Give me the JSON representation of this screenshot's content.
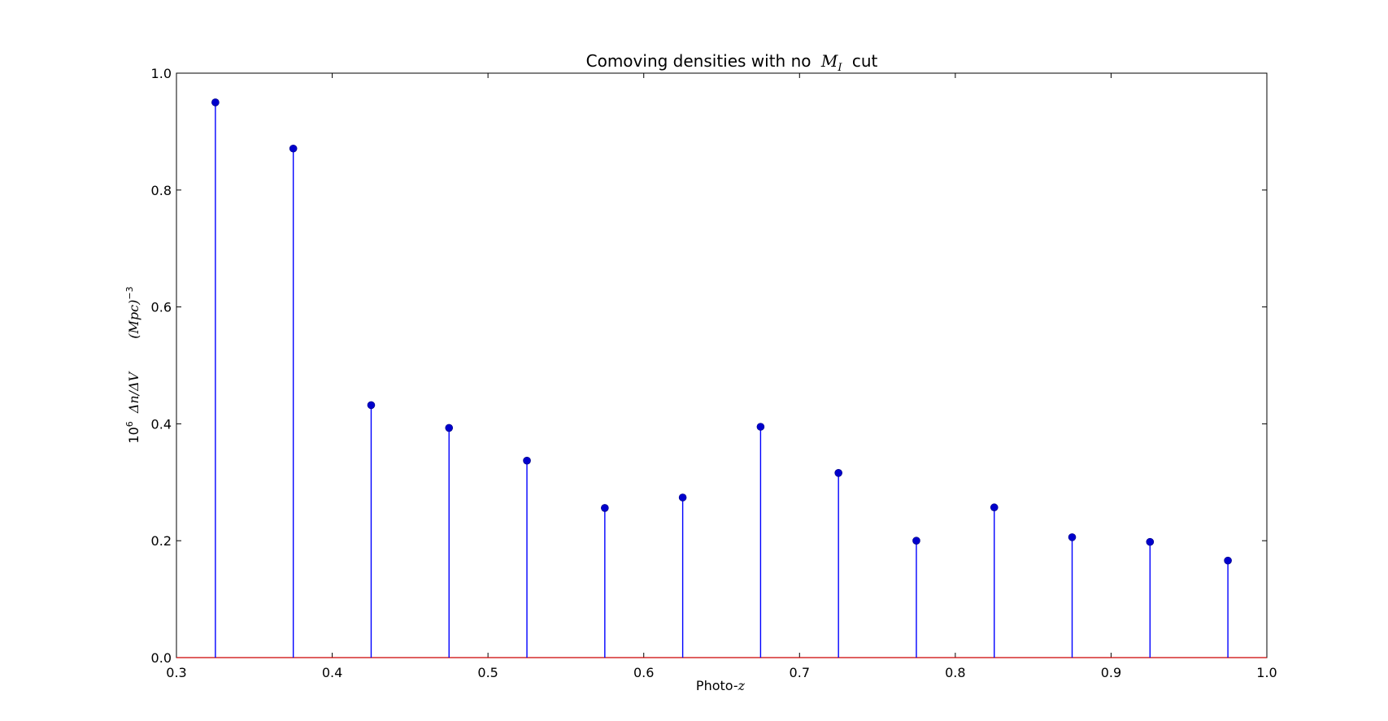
{
  "chart_data": {
    "type": "stem",
    "title": "Comoving densities with no",
    "title_math": "M",
    "title_math_sub": "I",
    "title_suffix": "cut",
    "xlabel": "Photo-",
    "xlabel_math": "z",
    "ylabel": "10",
    "ylabel_sup": "6",
    "ylabel_math": "Δn/ΔV",
    "ylabel_unit": "(Mpc)",
    "ylabel_unit_sup": "−3",
    "xlim": [
      0.3,
      1.0
    ],
    "ylim": [
      0.0,
      1.0
    ],
    "xticks": [
      "0.3",
      "0.4",
      "0.5",
      "0.6",
      "0.7",
      "0.8",
      "0.9",
      "1.0"
    ],
    "yticks": [
      "0.0",
      "0.2",
      "0.4",
      "0.6",
      "0.8",
      "1.0"
    ],
    "x": [
      0.325,
      0.375,
      0.425,
      0.475,
      0.525,
      0.575,
      0.625,
      0.675,
      0.725,
      0.775,
      0.825,
      0.875,
      0.925,
      0.975
    ],
    "y": [
      0.95,
      0.871,
      0.432,
      0.393,
      0.337,
      0.256,
      0.274,
      0.395,
      0.316,
      0.2,
      0.257,
      0.206,
      0.198,
      0.166
    ],
    "marker_color": "#0000cc",
    "stem_color": "#0000ff",
    "baseline_color": "#cc0000",
    "grid": false
  }
}
